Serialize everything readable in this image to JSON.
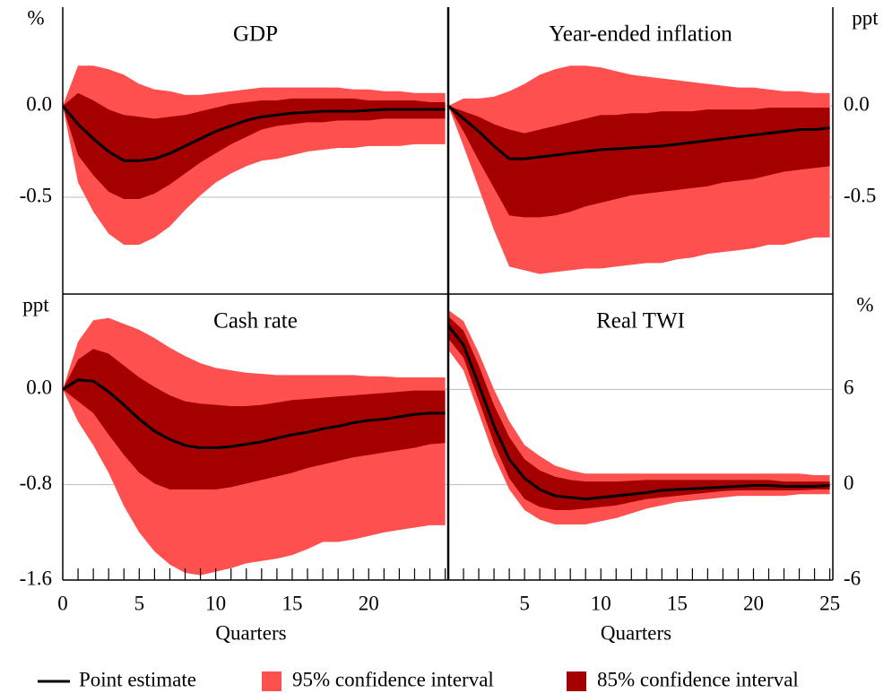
{
  "legend": [
    {
      "name": "Point estimate",
      "color": "#000000"
    },
    {
      "name": "95% confidence interval",
      "color": "#ff5050"
    },
    {
      "name": "85% confidence interval",
      "color": "#a50000"
    }
  ],
  "chart_data": [
    {
      "type": "line",
      "title": "GDP",
      "y_label": "%",
      "yaxis_side": "left",
      "x": [
        0,
        1,
        2,
        3,
        4,
        5,
        6,
        7,
        8,
        9,
        10,
        11,
        12,
        13,
        14,
        15,
        16,
        17,
        18,
        19,
        20,
        21,
        22,
        23,
        24,
        25
      ],
      "xlim": [
        0,
        25.2
      ],
      "ylim": [
        -1.03,
        0.54
      ],
      "yticks": [
        {
          "value": 0,
          "label": "0.0"
        },
        {
          "value": -0.5,
          "label": "-0.5"
        }
      ],
      "grid": true,
      "line": [
        0,
        -0.1,
        -0.18,
        -0.25,
        -0.3,
        -0.3,
        -0.29,
        -0.26,
        -0.22,
        -0.18,
        -0.14,
        -0.11,
        -0.08,
        -0.06,
        -0.05,
        -0.04,
        -0.035,
        -0.03,
        -0.03,
        -0.03,
        -0.025,
        -0.02,
        -0.02,
        -0.02,
        -0.02,
        -0.02
      ],
      "band95": {
        "upper": [
          0,
          0.22,
          0.22,
          0.2,
          0.17,
          0.12,
          0.09,
          0.08,
          0.06,
          0.06,
          0.07,
          0.08,
          0.09,
          0.1,
          0.1,
          0.1,
          0.1,
          0.1,
          0.1,
          0.09,
          0.09,
          0.08,
          0.08,
          0.07,
          0.07,
          0.07
        ],
        "lower": [
          0,
          -0.42,
          -0.58,
          -0.7,
          -0.76,
          -0.76,
          -0.72,
          -0.66,
          -0.57,
          -0.49,
          -0.42,
          -0.37,
          -0.33,
          -0.3,
          -0.29,
          -0.27,
          -0.25,
          -0.24,
          -0.23,
          -0.23,
          -0.22,
          -0.22,
          -0.22,
          -0.21,
          -0.21,
          -0.21
        ]
      },
      "band85": {
        "upper": [
          0,
          0.07,
          0.03,
          -0.02,
          -0.05,
          -0.06,
          -0.07,
          -0.06,
          -0.05,
          -0.03,
          -0.01,
          0.01,
          0.02,
          0.03,
          0.03,
          0.04,
          0.04,
          0.04,
          0.04,
          0.04,
          0.03,
          0.03,
          0.03,
          0.03,
          0.02,
          0.02
        ],
        "lower": [
          0,
          -0.27,
          -0.38,
          -0.47,
          -0.51,
          -0.51,
          -0.48,
          -0.43,
          -0.37,
          -0.31,
          -0.26,
          -0.21,
          -0.17,
          -0.13,
          -0.11,
          -0.1,
          -0.09,
          -0.09,
          -0.08,
          -0.08,
          -0.08,
          -0.07,
          -0.07,
          -0.07,
          -0.07,
          -0.07
        ]
      }
    },
    {
      "type": "line",
      "title": "Year-ended inflation",
      "y_label": "ppt",
      "yaxis_side": "right",
      "x": [
        0,
        1,
        2,
        3,
        4,
        5,
        6,
        7,
        8,
        9,
        10,
        11,
        12,
        13,
        14,
        15,
        16,
        17,
        18,
        19,
        20,
        21,
        22,
        23,
        24,
        25
      ],
      "xlim": [
        0,
        25.2
      ],
      "ylim": [
        -1.03,
        0.54
      ],
      "yticks": [
        {
          "value": 0,
          "label": "0.0"
        },
        {
          "value": -0.5,
          "label": "-0.5"
        }
      ],
      "grid": true,
      "line": [
        0,
        -0.07,
        -0.14,
        -0.22,
        -0.29,
        -0.29,
        -0.28,
        -0.27,
        -0.26,
        -0.25,
        -0.24,
        -0.235,
        -0.23,
        -0.225,
        -0.22,
        -0.21,
        -0.2,
        -0.19,
        -0.18,
        -0.17,
        -0.16,
        -0.15,
        -0.14,
        -0.13,
        -0.13,
        -0.12
      ],
      "band95": {
        "upper": [
          0,
          0.04,
          0.04,
          0.05,
          0.08,
          0.12,
          0.17,
          0.2,
          0.22,
          0.22,
          0.21,
          0.19,
          0.17,
          0.16,
          0.15,
          0.14,
          0.13,
          0.12,
          0.11,
          0.1,
          0.1,
          0.09,
          0.08,
          0.08,
          0.07,
          0.07
        ],
        "lower": [
          0,
          -0.22,
          -0.45,
          -0.68,
          -0.88,
          -0.9,
          -0.92,
          -0.91,
          -0.9,
          -0.89,
          -0.89,
          -0.88,
          -0.87,
          -0.86,
          -0.86,
          -0.84,
          -0.83,
          -0.81,
          -0.8,
          -0.79,
          -0.78,
          -0.76,
          -0.76,
          -0.74,
          -0.72,
          -0.72
        ]
      },
      "band85": {
        "upper": [
          0,
          -0.03,
          -0.06,
          -0.1,
          -0.13,
          -0.15,
          -0.13,
          -0.11,
          -0.09,
          -0.07,
          -0.05,
          -0.05,
          -0.04,
          -0.04,
          -0.03,
          -0.03,
          -0.03,
          -0.02,
          -0.02,
          -0.02,
          -0.02,
          -0.01,
          -0.01,
          -0.01,
          -0.01,
          -0.01
        ],
        "lower": [
          0,
          -0.14,
          -0.3,
          -0.45,
          -0.6,
          -0.61,
          -0.61,
          -0.6,
          -0.58,
          -0.55,
          -0.53,
          -0.51,
          -0.49,
          -0.48,
          -0.47,
          -0.46,
          -0.45,
          -0.44,
          -0.42,
          -0.41,
          -0.4,
          -0.38,
          -0.36,
          -0.35,
          -0.34,
          -0.33
        ]
      }
    },
    {
      "type": "line",
      "title": "Cash rate",
      "y_label": "ppt",
      "yaxis_side": "left",
      "x_label": "Quarters",
      "x": [
        0,
        1,
        2,
        3,
        4,
        5,
        6,
        7,
        8,
        9,
        10,
        11,
        12,
        13,
        14,
        15,
        16,
        17,
        18,
        19,
        20,
        21,
        22,
        23,
        24,
        25
      ],
      "xlim": [
        0,
        25.2
      ],
      "xticks": [
        0,
        5,
        10,
        15,
        20
      ],
      "ylim": [
        -1.6,
        0.8
      ],
      "yticks": [
        {
          "value": 0,
          "label": "0.0"
        },
        {
          "value": -0.8,
          "label": "-0.8"
        },
        {
          "value": -1.6,
          "label": "-1.6"
        }
      ],
      "grid": true,
      "line": [
        0,
        0.08,
        0.07,
        -0.02,
        -0.13,
        -0.25,
        -0.35,
        -0.42,
        -0.47,
        -0.49,
        -0.49,
        -0.48,
        -0.46,
        -0.44,
        -0.41,
        -0.38,
        -0.36,
        -0.33,
        -0.31,
        -0.28,
        -0.26,
        -0.25,
        -0.23,
        -0.21,
        -0.2,
        -0.2
      ],
      "band95": {
        "upper": [
          0,
          0.4,
          0.58,
          0.6,
          0.55,
          0.5,
          0.43,
          0.35,
          0.28,
          0.22,
          0.18,
          0.16,
          0.14,
          0.13,
          0.12,
          0.12,
          0.12,
          0.12,
          0.12,
          0.12,
          0.11,
          0.11,
          0.1,
          0.1,
          0.1,
          0.1
        ],
        "lower": [
          0,
          -0.27,
          -0.47,
          -0.7,
          -0.98,
          -1.2,
          -1.36,
          -1.47,
          -1.54,
          -1.56,
          -1.53,
          -1.5,
          -1.46,
          -1.44,
          -1.42,
          -1.39,
          -1.34,
          -1.28,
          -1.28,
          -1.26,
          -1.23,
          -1.2,
          -1.18,
          -1.16,
          -1.14,
          -1.14
        ]
      },
      "band85": {
        "upper": [
          0,
          0.25,
          0.34,
          0.3,
          0.2,
          0.1,
          0.02,
          -0.05,
          -0.1,
          -0.12,
          -0.13,
          -0.14,
          -0.14,
          -0.13,
          -0.11,
          -0.09,
          -0.08,
          -0.07,
          -0.06,
          -0.05,
          -0.04,
          -0.03,
          -0.02,
          -0.01,
          -0.01,
          -0.01
        ],
        "lower": [
          0,
          -0.1,
          -0.2,
          -0.38,
          -0.55,
          -0.7,
          -0.79,
          -0.84,
          -0.84,
          -0.84,
          -0.84,
          -0.82,
          -0.79,
          -0.76,
          -0.73,
          -0.7,
          -0.66,
          -0.63,
          -0.6,
          -0.57,
          -0.55,
          -0.53,
          -0.51,
          -0.49,
          -0.46,
          -0.45
        ]
      }
    },
    {
      "type": "line",
      "title": "Real TWI",
      "y_label": "%",
      "yaxis_side": "right",
      "x_label": "Quarters",
      "x": [
        0,
        1,
        2,
        3,
        4,
        5,
        6,
        7,
        8,
        9,
        10,
        11,
        12,
        13,
        14,
        15,
        16,
        17,
        18,
        19,
        20,
        21,
        22,
        23,
        24,
        25
      ],
      "xlim": [
        0,
        25.2
      ],
      "xticks": [
        5,
        10,
        15,
        20,
        25
      ],
      "ylim": [
        -6,
        12
      ],
      "yticks": [
        6,
        0,
        -6
      ],
      "grid": true,
      "line": [
        10,
        8.8,
        6.3,
        3.7,
        1.6,
        0.4,
        -0.3,
        -0.7,
        -0.8,
        -0.9,
        -0.8,
        -0.7,
        -0.6,
        -0.5,
        -0.35,
        -0.3,
        -0.25,
        -0.2,
        -0.15,
        -0.1,
        -0.05,
        -0.05,
        -0.1,
        -0.1,
        -0.1,
        -0.05
      ],
      "band95": {
        "upper": [
          11,
          10.3,
          8.3,
          6,
          4,
          2.5,
          1.8,
          1.2,
          0.9,
          0.7,
          0.7,
          0.7,
          0.7,
          0.7,
          0.7,
          0.7,
          0.7,
          0.7,
          0.7,
          0.7,
          0.7,
          0.7,
          0.7,
          0.7,
          0.6,
          0.6
        ],
        "lower": [
          8.5,
          7.2,
          4.5,
          1.8,
          -0.3,
          -1.6,
          -2.2,
          -2.5,
          -2.5,
          -2.5,
          -2.3,
          -2.1,
          -1.8,
          -1.5,
          -1.3,
          -1.1,
          -1,
          -0.9,
          -0.8,
          -0.7,
          -0.7,
          -0.7,
          -0.7,
          -0.6,
          -0.6,
          -0.6
        ]
      },
      "band85": {
        "upper": [
          10.6,
          9.7,
          7.5,
          5,
          3,
          1.6,
          0.9,
          0.5,
          0.3,
          0.2,
          0.2,
          0.2,
          0.25,
          0.3,
          0.3,
          0.3,
          0.3,
          0.3,
          0.3,
          0.3,
          0.3,
          0.3,
          0.2,
          0.2,
          0.2,
          0.2
        ],
        "lower": [
          9.2,
          8,
          5.3,
          2.6,
          0.4,
          -0.9,
          -1.4,
          -1.6,
          -1.6,
          -1.5,
          -1.4,
          -1.3,
          -1.1,
          -0.9,
          -0.8,
          -0.7,
          -0.6,
          -0.5,
          -0.4,
          -0.35,
          -0.35,
          -0.35,
          -0.35,
          -0.35,
          -0.3,
          -0.3
        ]
      }
    }
  ]
}
